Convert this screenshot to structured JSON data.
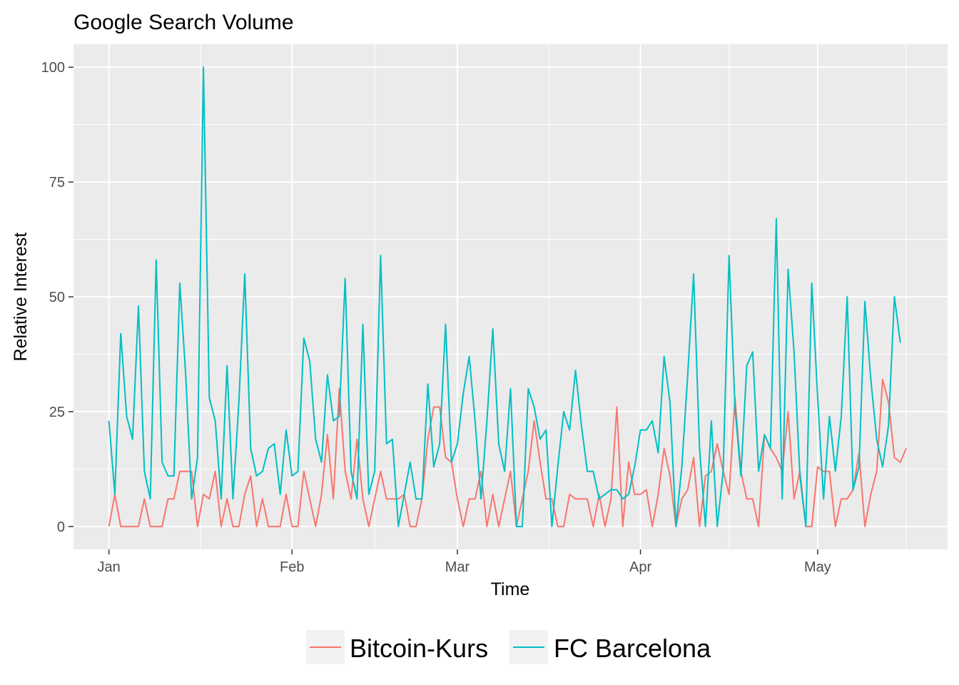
{
  "chart_data": {
    "type": "line",
    "title": "Google Search Volume",
    "xlabel": "Time",
    "ylabel": "Relative Interest",
    "x_start_date": "2019-01-01",
    "x_step_days": 1,
    "xlim": [
      "2018-12-26",
      "2019-05-23"
    ],
    "ylim": [
      -5,
      105
    ],
    "y_ticks": [
      0,
      25,
      50,
      75,
      100
    ],
    "x_ticks": [
      {
        "label": "Jan",
        "date": "2019-01-01"
      },
      {
        "label": "Feb",
        "date": "2019-02-01"
      },
      {
        "label": "Mar",
        "date": "2019-03-01"
      },
      {
        "label": "Apr",
        "date": "2019-04-01"
      },
      {
        "label": "May",
        "date": "2019-05-01"
      }
    ],
    "grid": true,
    "legend_position": "bottom",
    "series": [
      {
        "name": "Bitcoin-Kurs",
        "color": "#F8766D",
        "values": [
          0,
          7,
          0,
          0,
          0,
          0,
          6,
          0,
          0,
          0,
          6,
          6,
          12,
          12,
          12,
          0,
          7,
          6,
          12,
          0,
          6,
          0,
          0,
          7,
          11,
          0,
          6,
          0,
          0,
          0,
          7,
          0,
          0,
          12,
          6,
          0,
          7,
          20,
          6,
          30,
          12,
          6,
          19,
          6,
          0,
          6,
          12,
          6,
          6,
          6,
          7,
          0,
          0,
          6,
          19,
          26,
          26,
          15,
          14,
          6,
          0,
          6,
          6,
          12,
          0,
          7,
          0,
          6,
          12,
          0,
          6,
          12,
          23,
          14,
          6,
          6,
          0,
          0,
          7,
          6,
          6,
          6,
          0,
          7,
          0,
          6,
          26,
          0,
          14,
          7,
          7,
          8,
          0,
          7,
          17,
          11,
          0,
          6,
          8,
          15,
          0,
          11,
          12,
          18,
          12,
          7,
          28,
          12,
          6,
          6,
          0,
          20,
          17,
          15,
          12,
          25,
          6,
          12,
          0,
          0,
          13,
          12,
          12,
          0,
          6,
          6,
          8,
          16,
          0,
          7,
          12,
          32,
          27,
          15,
          14,
          17
        ]
      },
      {
        "name": "FC Barcelona",
        "color": "#00BFC4",
        "values": [
          23,
          7,
          42,
          24,
          19,
          48,
          12,
          6,
          58,
          14,
          11,
          11,
          53,
          33,
          6,
          15,
          100,
          28,
          23,
          6,
          35,
          6,
          27,
          55,
          17,
          11,
          12,
          17,
          18,
          7,
          21,
          11,
          12,
          41,
          36,
          19,
          14,
          33,
          23,
          24,
          54,
          12,
          6,
          44,
          7,
          12,
          59,
          18,
          19,
          0,
          7,
          14,
          6,
          6,
          31,
          13,
          18,
          44,
          14,
          18,
          29,
          37,
          23,
          6,
          23,
          43,
          18,
          12,
          30,
          0,
          0,
          30,
          26,
          19,
          21,
          0,
          13,
          25,
          21,
          34,
          22,
          12,
          12,
          6,
          7,
          8,
          8,
          6,
          7,
          13,
          21,
          21,
          23,
          16,
          37,
          27,
          0,
          13,
          33,
          55,
          17,
          0,
          23,
          0,
          12,
          59,
          26,
          11,
          35,
          38,
          12,
          20,
          17,
          67,
          6,
          56,
          38,
          11,
          0,
          53,
          28,
          6,
          24,
          12,
          24,
          50,
          8,
          13,
          49,
          32,
          19,
          13,
          22,
          50,
          40
        ]
      }
    ]
  }
}
